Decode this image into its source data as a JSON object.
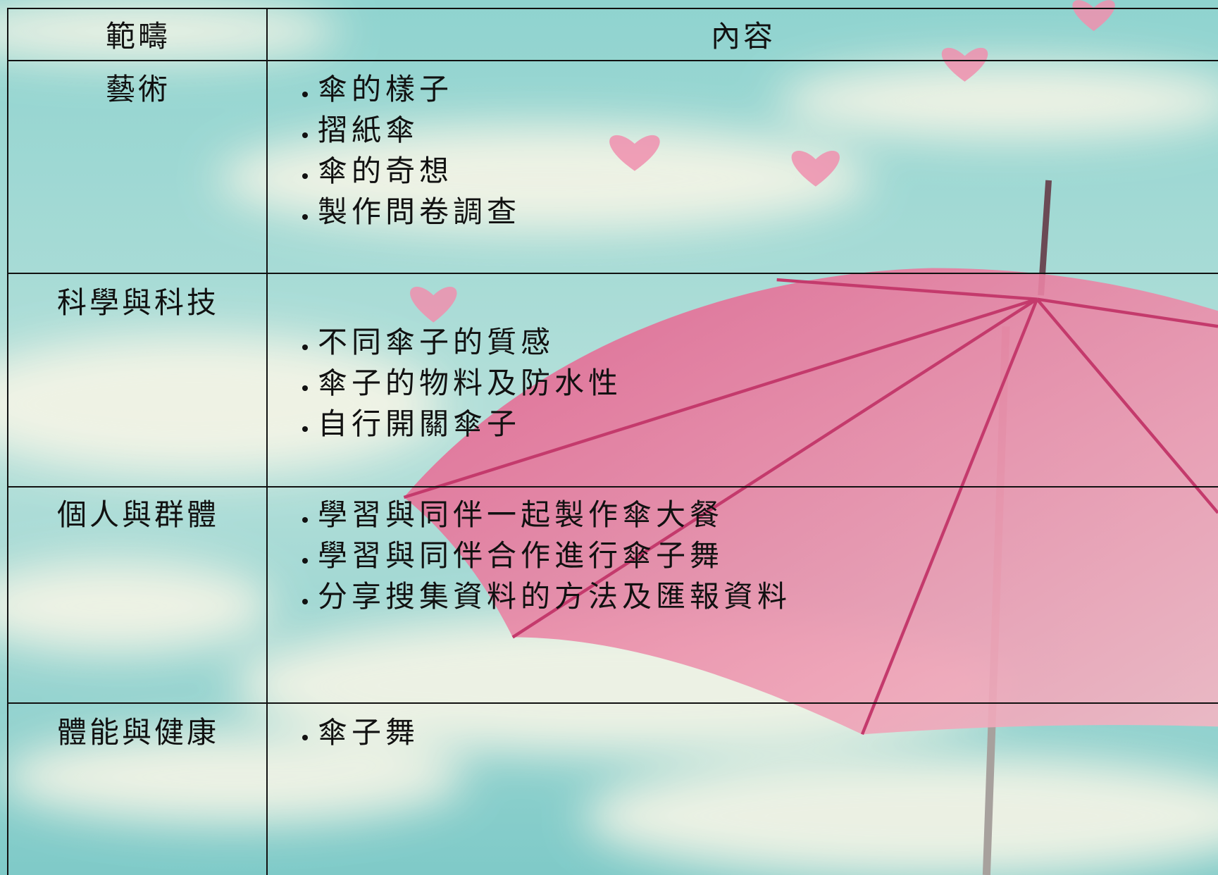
{
  "table": {
    "header": [
      "範疇",
      "內容"
    ],
    "rows": [
      {
        "category": "藝術",
        "items": [
          "傘的樣子",
          "摺紙傘",
          "傘的奇想",
          "製作問卷調查"
        ]
      },
      {
        "category": "科學與科技",
        "items": [
          "不同傘子的質感",
          "傘子的物料及防水性",
          "自行開關傘子"
        ]
      },
      {
        "category": "個人與群體",
        "items": [
          "學習與同伴一起製作傘大餐",
          "學習與同伴合作進行傘子舞",
          "分享搜集資料的方法及匯報資料"
        ]
      },
      {
        "category": "體能與健康",
        "items": [
          "傘子舞"
        ]
      }
    ]
  }
}
